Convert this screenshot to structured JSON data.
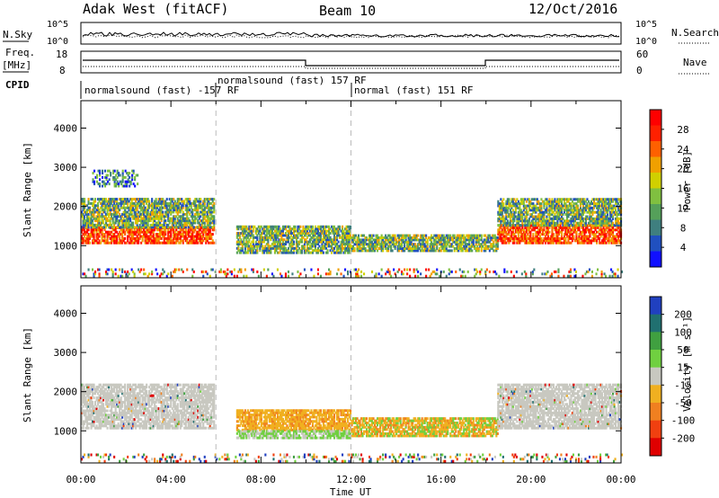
{
  "header": {
    "station": "Adak West (fitACF)",
    "beam": "Beam 10",
    "date": "12/Oct/2016"
  },
  "top_panels": {
    "nsky_label": "N.Sky",
    "nsky_ticks": [
      "10^5",
      "10^0"
    ],
    "nsearch_label": "N.Search",
    "freq_label_line1": "Freq.",
    "freq_label_line2": "[MHz]",
    "freq_ticks": [
      "18",
      "8"
    ],
    "nave_label": "Nave",
    "nave_ticks": [
      "60",
      "0"
    ],
    "cpid_label": "CPID",
    "cpid_segments": [
      {
        "label": "normalsound (fast) -157 RF",
        "start_hour": 0
      },
      {
        "label": "normalsound (fast) 157 RF",
        "start_hour": 6
      },
      {
        "label": "normal (fast) 151 RF",
        "start_hour": 12
      }
    ]
  },
  "chart_data": [
    {
      "type": "heatmap",
      "name": "power",
      "ylabel": "Slant Range [km]",
      "xlabel": "Time UT",
      "xlim": [
        0,
        24
      ],
      "ylim": [
        180,
        4700
      ],
      "x_ticks": [
        "00:00",
        "04:00",
        "08:00",
        "12:00",
        "16:00",
        "20:00",
        "00:00"
      ],
      "y_ticks": [
        1000,
        2000,
        3000,
        4000
      ],
      "colorbar": {
        "label": "Power [dB]",
        "ticks": [
          "4",
          "8",
          "12",
          "16",
          "20",
          "24",
          "28"
        ],
        "colors": [
          "#1010ff",
          "#2050c0",
          "#3f7f7f",
          "#55a05a",
          "#80c040",
          "#d0d000",
          "#f0a000",
          "#ff6000",
          "#ff2000",
          "#ff0000"
        ]
      },
      "bands": [
        {
          "t0": 0.0,
          "t1": 5.9,
          "r0": 1050,
          "r1": 1450,
          "level": "high"
        },
        {
          "t0": 0.0,
          "t1": 5.9,
          "r0": 1450,
          "r1": 2200,
          "level": "mid"
        },
        {
          "t0": 0.5,
          "t1": 2.5,
          "r0": 2500,
          "r1": 2900,
          "level": "low"
        },
        {
          "t0": 6.9,
          "t1": 12.0,
          "r0": 800,
          "r1": 1500,
          "level": "mid"
        },
        {
          "t0": 12.0,
          "t1": 18.5,
          "r0": 850,
          "r1": 1250,
          "level": "mid"
        },
        {
          "t0": 18.5,
          "t1": 24.0,
          "r0": 1050,
          "r1": 1500,
          "level": "high"
        },
        {
          "t0": 18.5,
          "t1": 24.0,
          "r0": 1500,
          "r1": 2200,
          "level": "mid"
        },
        {
          "t0": 0.0,
          "t1": 24.0,
          "r0": 200,
          "r1": 400,
          "level": "noise"
        }
      ]
    },
    {
      "type": "heatmap",
      "name": "velocity",
      "ylabel": "Slant Range [km]",
      "xlabel": "Time UT",
      "xlim": [
        0,
        24
      ],
      "ylim": [
        180,
        4700
      ],
      "x_ticks": [
        "00:00",
        "04:00",
        "08:00",
        "12:00",
        "16:00",
        "20:00",
        "00:00"
      ],
      "y_ticks": [
        1000,
        2000,
        3000,
        4000
      ],
      "colorbar": {
        "label": "Velocity [m s⁻¹]",
        "ticks": [
          "200",
          "100",
          "50",
          "15",
          "-15",
          "-50",
          "-100",
          "-200"
        ],
        "colors": [
          "#2040c0",
          "#207070",
          "#40a040",
          "#70d040",
          "#c8c8c0",
          "#f0b020",
          "#f08020",
          "#f04010",
          "#e00000"
        ]
      },
      "bands": [
        {
          "t0": 0.0,
          "t1": 5.9,
          "r0": 1050,
          "r1": 2200,
          "level": "ground"
        },
        {
          "t0": 6.9,
          "t1": 12.0,
          "r0": 1000,
          "r1": 1500,
          "level": "neg"
        },
        {
          "t0": 6.9,
          "t1": 12.0,
          "r0": 800,
          "r1": 1000,
          "level": "pos"
        },
        {
          "t0": 12.0,
          "t1": 18.5,
          "r0": 850,
          "r1": 1300,
          "level": "mixed"
        },
        {
          "t0": 18.5,
          "t1": 24.0,
          "r0": 1050,
          "r1": 2200,
          "level": "ground"
        },
        {
          "t0": 0.0,
          "t1": 24.0,
          "r0": 200,
          "r1": 400,
          "level": "noise"
        }
      ]
    }
  ]
}
